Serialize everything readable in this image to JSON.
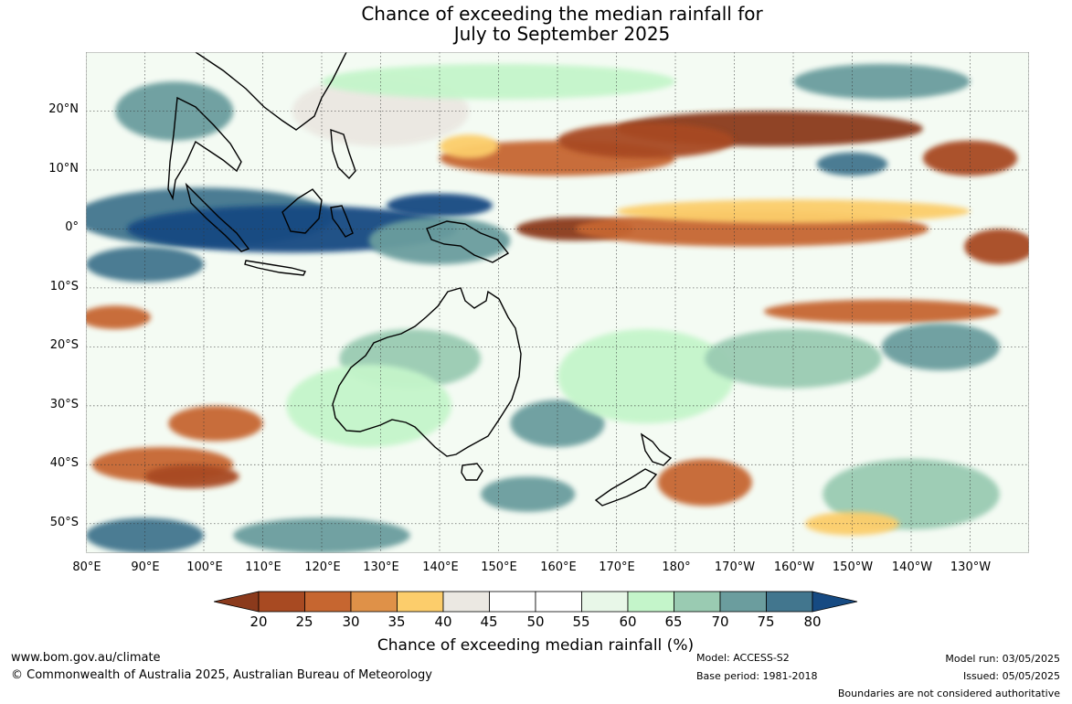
{
  "title_line1": "Chance of exceeding the median rainfall for",
  "title_line2": "July to September 2025",
  "map": {
    "lat_labels": [
      "20°N",
      "10°N",
      "0°",
      "10°S",
      "20°S",
      "30°S",
      "40°S",
      "50°S"
    ],
    "lon_labels": [
      "80°E",
      "90°E",
      "100°E",
      "110°E",
      "120°E",
      "130°E",
      "140°E",
      "150°E",
      "160°E",
      "170°E",
      "180°",
      "170°W",
      "160°W",
      "150°W",
      "140°W",
      "130°W"
    ],
    "extent": {
      "lon_min": 80,
      "lon_max": 240,
      "lat_min": -55,
      "lat_max": 30
    },
    "gridlines": "dotted",
    "regions": [
      {
        "category": "70-75",
        "lon": 95,
        "lat": 20,
        "rlon": 10,
        "rlat": 5
      },
      {
        "category": "75-80",
        "lon": 100,
        "lat": 2,
        "rlon": 22,
        "rlat": 5
      },
      {
        "category": ">80",
        "lon": 115,
        "lat": 0,
        "rlon": 28,
        "rlat": 4
      },
      {
        "category": ">80",
        "lon": 140,
        "lat": 4,
        "rlon": 9,
        "rlat": 2
      },
      {
        "category": "70-75",
        "lon": 140,
        "lat": -2,
        "rlon": 12,
        "rlat": 4
      },
      {
        "category": "75-80",
        "lon": 90,
        "lat": -6,
        "rlon": 10,
        "rlat": 3
      },
      {
        "category": "25-30",
        "lon": 160,
        "lat": 12,
        "rlon": 20,
        "rlat": 3
      },
      {
        "category": "<20",
        "lon": 196,
        "lat": 17,
        "rlon": 26,
        "rlat": 3
      },
      {
        "category": "20-25",
        "lon": 175,
        "lat": 15,
        "rlon": 15,
        "rlat": 3
      },
      {
        "category": "20-25",
        "lon": 230,
        "lat": 12,
        "rlon": 8,
        "rlat": 3
      },
      {
        "category": "<20",
        "lon": 163,
        "lat": 0,
        "rlon": 10,
        "rlat": 2
      },
      {
        "category": "25-30",
        "lon": 193,
        "lat": 0,
        "rlon": 30,
        "rlat": 3
      },
      {
        "category": "35-40",
        "lon": 200,
        "lat": 3,
        "rlon": 30,
        "rlat": 2
      },
      {
        "category": "20-25",
        "lon": 235,
        "lat": -3,
        "rlon": 6,
        "rlat": 3
      },
      {
        "category": "25-30",
        "lon": 215,
        "lat": -14,
        "rlon": 20,
        "rlat": 2
      },
      {
        "category": "75-80",
        "lon": 210,
        "lat": 11,
        "rlon": 6,
        "rlat": 2
      },
      {
        "category": "25-30",
        "lon": 85,
        "lat": -15,
        "rlon": 6,
        "rlat": 2
      },
      {
        "category": "25-30",
        "lon": 93,
        "lat": -40,
        "rlon": 12,
        "rlat": 3
      },
      {
        "category": "20-25",
        "lon": 98,
        "lat": -42,
        "rlon": 8,
        "rlat": 2
      },
      {
        "category": "25-30",
        "lon": 102,
        "lat": -33,
        "rlon": 8,
        "rlat": 3
      },
      {
        "category": "25-30",
        "lon": 185,
        "lat": -43,
        "rlon": 8,
        "rlat": 4
      },
      {
        "category": "75-80",
        "lon": 90,
        "lat": -52,
        "rlon": 10,
        "rlat": 3
      },
      {
        "category": "70-75",
        "lon": 160,
        "lat": -33,
        "rlon": 8,
        "rlat": 4
      },
      {
        "category": "70-75",
        "lon": 155,
        "lat": -45,
        "rlon": 8,
        "rlat": 3
      },
      {
        "category": "65-70",
        "lon": 135,
        "lat": -22,
        "rlon": 12,
        "rlat": 5
      },
      {
        "category": "60-65",
        "lon": 128,
        "lat": -30,
        "rlon": 14,
        "rlat": 7
      },
      {
        "category": "60-65",
        "lon": 175,
        "lat": -25,
        "rlon": 15,
        "rlat": 8
      },
      {
        "category": "65-70",
        "lon": 200,
        "lat": -22,
        "rlon": 15,
        "rlat": 5
      },
      {
        "category": "70-75",
        "lon": 225,
        "lat": -20,
        "rlon": 10,
        "rlat": 4
      },
      {
        "category": "65-70",
        "lon": 220,
        "lat": -45,
        "rlon": 15,
        "rlat": 6
      },
      {
        "category": "70-75",
        "lon": 120,
        "lat": -52,
        "rlon": 15,
        "rlat": 3
      },
      {
        "category": "40-45",
        "lon": 130,
        "lat": 20,
        "rlon": 15,
        "rlat": 6
      },
      {
        "category": "60-65",
        "lon": 150,
        "lat": 25,
        "rlon": 30,
        "rlat": 3
      },
      {
        "category": "70-75",
        "lon": 215,
        "lat": 25,
        "rlon": 15,
        "rlat": 3
      },
      {
        "category": "35-40",
        "lon": 145,
        "lat": 14,
        "rlon": 5,
        "rlat": 2
      },
      {
        "category": "35-40",
        "lon": 210,
        "lat": -50,
        "rlon": 8,
        "rlat": 2
      }
    ]
  },
  "colorbar": {
    "ticks": [
      "20",
      "25",
      "30",
      "35",
      "40",
      "45",
      "50",
      "55",
      "60",
      "65",
      "70",
      "75",
      "80"
    ],
    "under_color": "#8b3a1c",
    "over_color": "#164a82",
    "colors": [
      "#a84a22",
      "#c66630",
      "#df9148",
      "#fccd6b",
      "#ebe8e2",
      "#ffffff",
      "#ffffff",
      "#e8f7e8",
      "#c4f5ca",
      "#9acbb2",
      "#6b9d9e",
      "#42768e"
    ],
    "label": "Chance of exceeding median rainfall (%)"
  },
  "footer": {
    "website": "www.bom.gov.au/climate",
    "copyright": "© Commonwealth of Australia 2025, Australian Bureau of Meteorology",
    "model": "Model: ACCESS-S2",
    "base_period": "Base period: 1981-2018",
    "model_run": "Model run: 03/05/2025",
    "issued": "Issued: 05/05/2025",
    "disclaimer": "Boundaries are not considered authoritative"
  }
}
